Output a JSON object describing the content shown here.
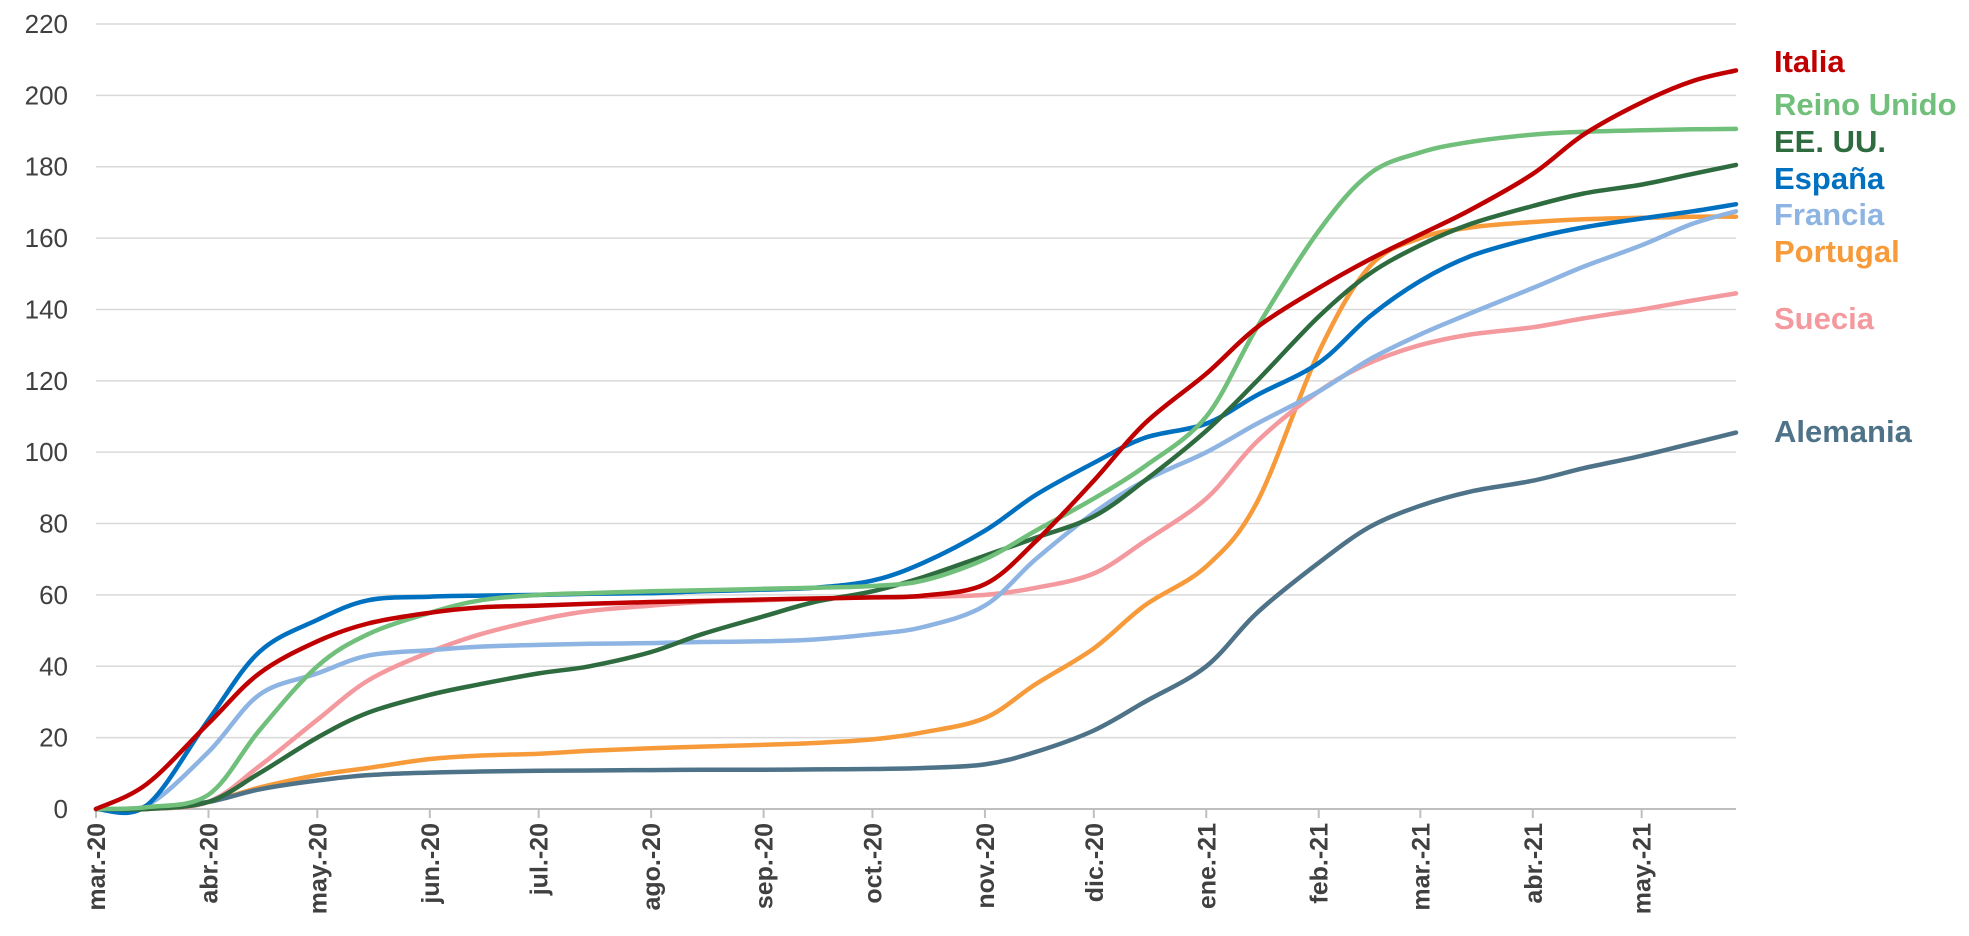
{
  "chart_data": {
    "type": "line",
    "title": "",
    "xlabel": "",
    "ylabel": "",
    "ylim": [
      0,
      220
    ],
    "yticks": [
      0,
      20,
      40,
      60,
      80,
      100,
      120,
      140,
      160,
      180,
      200,
      220
    ],
    "grid": true,
    "legend_placement": "right, labels at line ends",
    "x_tick_labels": [
      "mar.-20",
      "abr.-20",
      "may.-20",
      "jun.-20",
      "jul.-20",
      "ago.-20",
      "sep.-20",
      "oct.-20",
      "nov.-20",
      "dic.-20",
      "ene.-21",
      "feb.-21",
      "mar.-21",
      "abr.-21",
      "may.-21"
    ],
    "x": [
      "2020-03-01",
      "2020-03-15",
      "2020-04-01",
      "2020-04-15",
      "2020-05-01",
      "2020-05-15",
      "2020-06-01",
      "2020-06-15",
      "2020-07-01",
      "2020-07-15",
      "2020-08-01",
      "2020-08-15",
      "2020-09-01",
      "2020-09-15",
      "2020-10-01",
      "2020-10-15",
      "2020-11-01",
      "2020-11-15",
      "2020-12-01",
      "2020-12-15",
      "2021-01-01",
      "2021-01-15",
      "2021-02-01",
      "2021-02-15",
      "2021-03-01",
      "2021-03-15",
      "2021-04-01",
      "2021-04-15",
      "2021-05-01",
      "2021-05-15",
      "2021-05-27"
    ],
    "series": [
      {
        "name": "Italia",
        "color": "#c00000",
        "values": [
          0,
          7,
          24,
          38,
          47,
          52,
          55,
          56.5,
          57,
          57.5,
          58,
          58.3,
          58.7,
          59,
          59.3,
          59.8,
          63,
          75,
          92,
          108,
          122,
          135,
          146,
          154,
          161,
          168,
          178,
          189,
          198,
          204,
          207
        ]
      },
      {
        "name": "Reino Unido",
        "color": "#70bf7b",
        "values": [
          0,
          0.5,
          4,
          22,
          40,
          49,
          55,
          58.5,
          60,
          60.5,
          61,
          61.3,
          61.7,
          62,
          62.5,
          64,
          70,
          78,
          87,
          96,
          110,
          135,
          162,
          178,
          184,
          187,
          189,
          189.8,
          190.2,
          190.5,
          190.6
        ]
      },
      {
        "name": "EE. UU.",
        "color": "#2e6b3e",
        "values": [
          0,
          0,
          2,
          10,
          20,
          27,
          32,
          35,
          38,
          40,
          44,
          49,
          54,
          58,
          61,
          65,
          71,
          76,
          82,
          92,
          106,
          120,
          138,
          150,
          158,
          164,
          169,
          172.5,
          175,
          178,
          180.5
        ]
      },
      {
        "name": "España",
        "color": "#0070c0",
        "values": [
          0,
          1,
          25,
          44,
          53,
          58.5,
          59.5,
          59.8,
          60,
          60.3,
          60.5,
          61,
          61.5,
          62,
          64,
          69,
          78,
          88,
          97,
          104,
          108,
          116,
          125,
          138,
          148,
          155,
          160,
          163,
          165.5,
          167.5,
          169.5
        ]
      },
      {
        "name": "Francia",
        "color": "#8db4e2",
        "values": [
          0,
          1,
          16,
          32,
          38,
          43,
          44.5,
          45.5,
          46,
          46.3,
          46.5,
          46.8,
          47,
          47.5,
          49,
          51,
          57,
          70,
          83,
          92,
          100,
          108,
          117,
          126,
          133,
          139,
          146,
          152,
          158,
          164,
          167.5
        ]
      },
      {
        "name": "Portugal",
        "color": "#f79a3a",
        "values": [
          0,
          0,
          2,
          6,
          9.5,
          11.5,
          14,
          15,
          15.5,
          16.3,
          17,
          17.5,
          18,
          18.5,
          19.5,
          21.5,
          25.5,
          35,
          45,
          57,
          68,
          86,
          128,
          152,
          160,
          163,
          164.5,
          165.3,
          165.7,
          166,
          166
        ]
      },
      {
        "name": "Suecia",
        "color": "#f4999e",
        "values": [
          0,
          0,
          2,
          12,
          25,
          36,
          44,
          49,
          53,
          55.5,
          57,
          58,
          58.5,
          59,
          59.3,
          59.5,
          60,
          62,
          66,
          75,
          87,
          103,
          117,
          125,
          130,
          133,
          135,
          137.5,
          140,
          142.5,
          144.5
        ]
      },
      {
        "name": "Alemania",
        "color": "#4e7388",
        "values": [
          0,
          0,
          2,
          5.5,
          8,
          9.5,
          10.2,
          10.5,
          10.7,
          10.8,
          10.9,
          11,
          11,
          11.1,
          11.2,
          11.5,
          12.5,
          16,
          22,
          30,
          40,
          55,
          69,
          79,
          85,
          89,
          92,
          95.5,
          99,
          102.5,
          105.5
        ]
      }
    ]
  }
}
